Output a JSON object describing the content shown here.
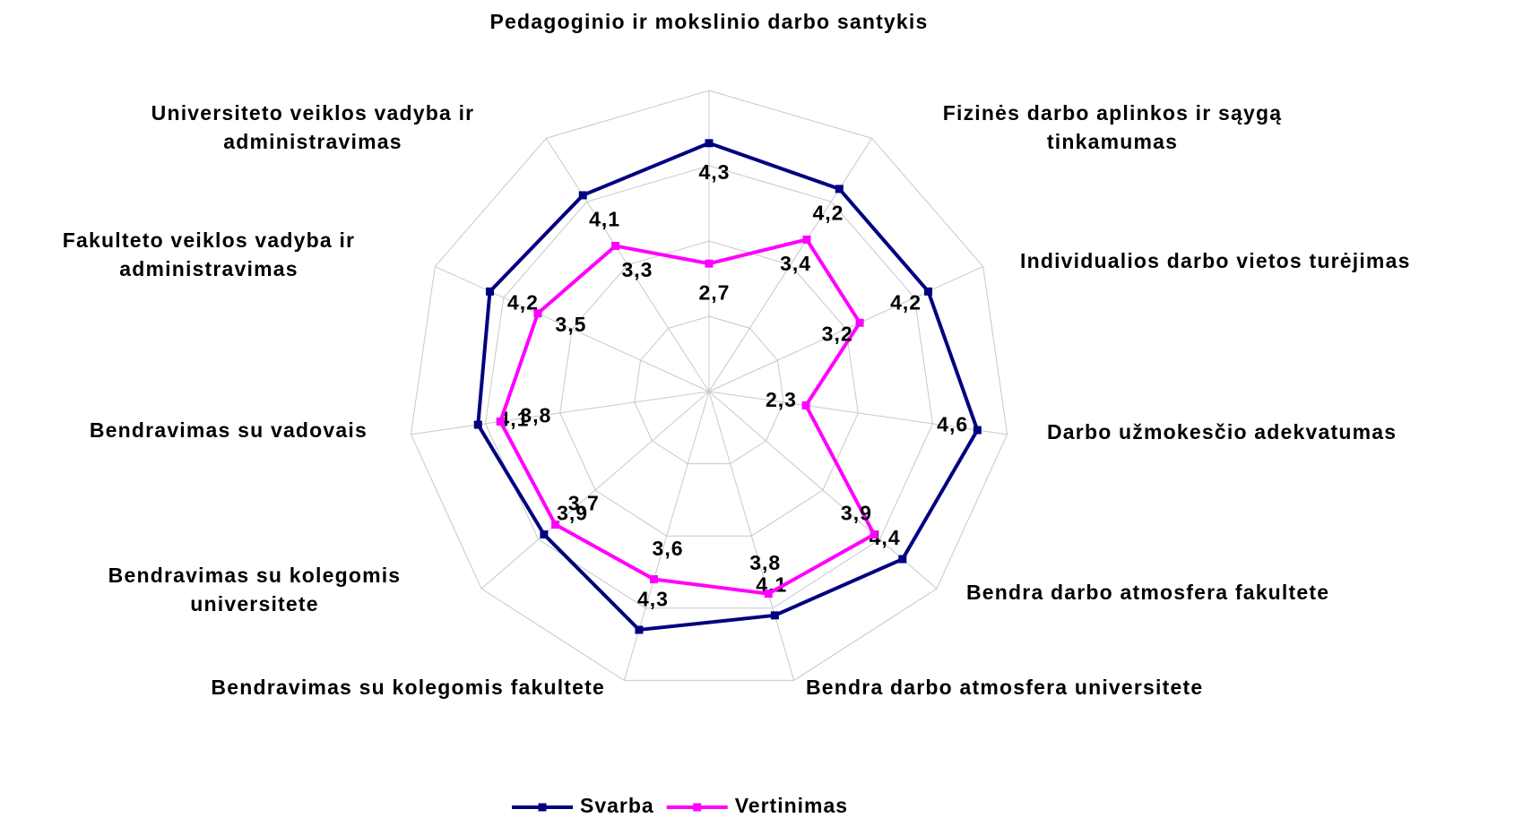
{
  "chart_data": {
    "type": "radar",
    "categories": [
      "Pedagoginio ir mokslinio darbo santykis",
      "Fizinės darbo aplinkos ir sąygą tinkamumas",
      "Individualios darbo vietos turėjimas",
      "Darbo užmokesčio adekvatumas",
      "Bendra darbo atmosfera fakultete",
      "Bendra darbo atmosfera universitete",
      "Bendravimas su kolegomis fakultete",
      "Bendravimas su kolegomis universitete",
      "Bendravimas su vadovais",
      "Fakulteto veiklos vadyba ir administravimas",
      "Universiteto veiklos vadyba ir administravimas"
    ],
    "series": [
      {
        "name": "Svarba",
        "color": "#000080",
        "values": [
          4.3,
          4.2,
          4.2,
          4.6,
          4.4,
          4.1,
          4.3,
          3.9,
          4.1,
          4.2,
          4.1
        ],
        "value_labels": [
          "4,3",
          "4,2",
          "4,2",
          "4,6",
          "4,4",
          "4,1",
          "4,3",
          "3,9",
          "4,1",
          "4,2",
          "4,1"
        ]
      },
      {
        "name": "Vertinimas",
        "color": "#ff00ff",
        "values": [
          2.7,
          3.4,
          3.2,
          2.3,
          3.9,
          3.8,
          3.6,
          3.7,
          3.8,
          3.5,
          3.3
        ],
        "value_labels": [
          "2,7",
          "3,4",
          "3,2",
          "2,3",
          "3,9",
          "3,8",
          "3,6",
          "3,7",
          "3,8",
          "3,5",
          "3,3"
        ]
      }
    ],
    "ylim": [
      1,
      5
    ],
    "yticks": [
      1,
      2,
      3,
      4,
      5
    ],
    "grid": true,
    "legend": "bottom"
  }
}
